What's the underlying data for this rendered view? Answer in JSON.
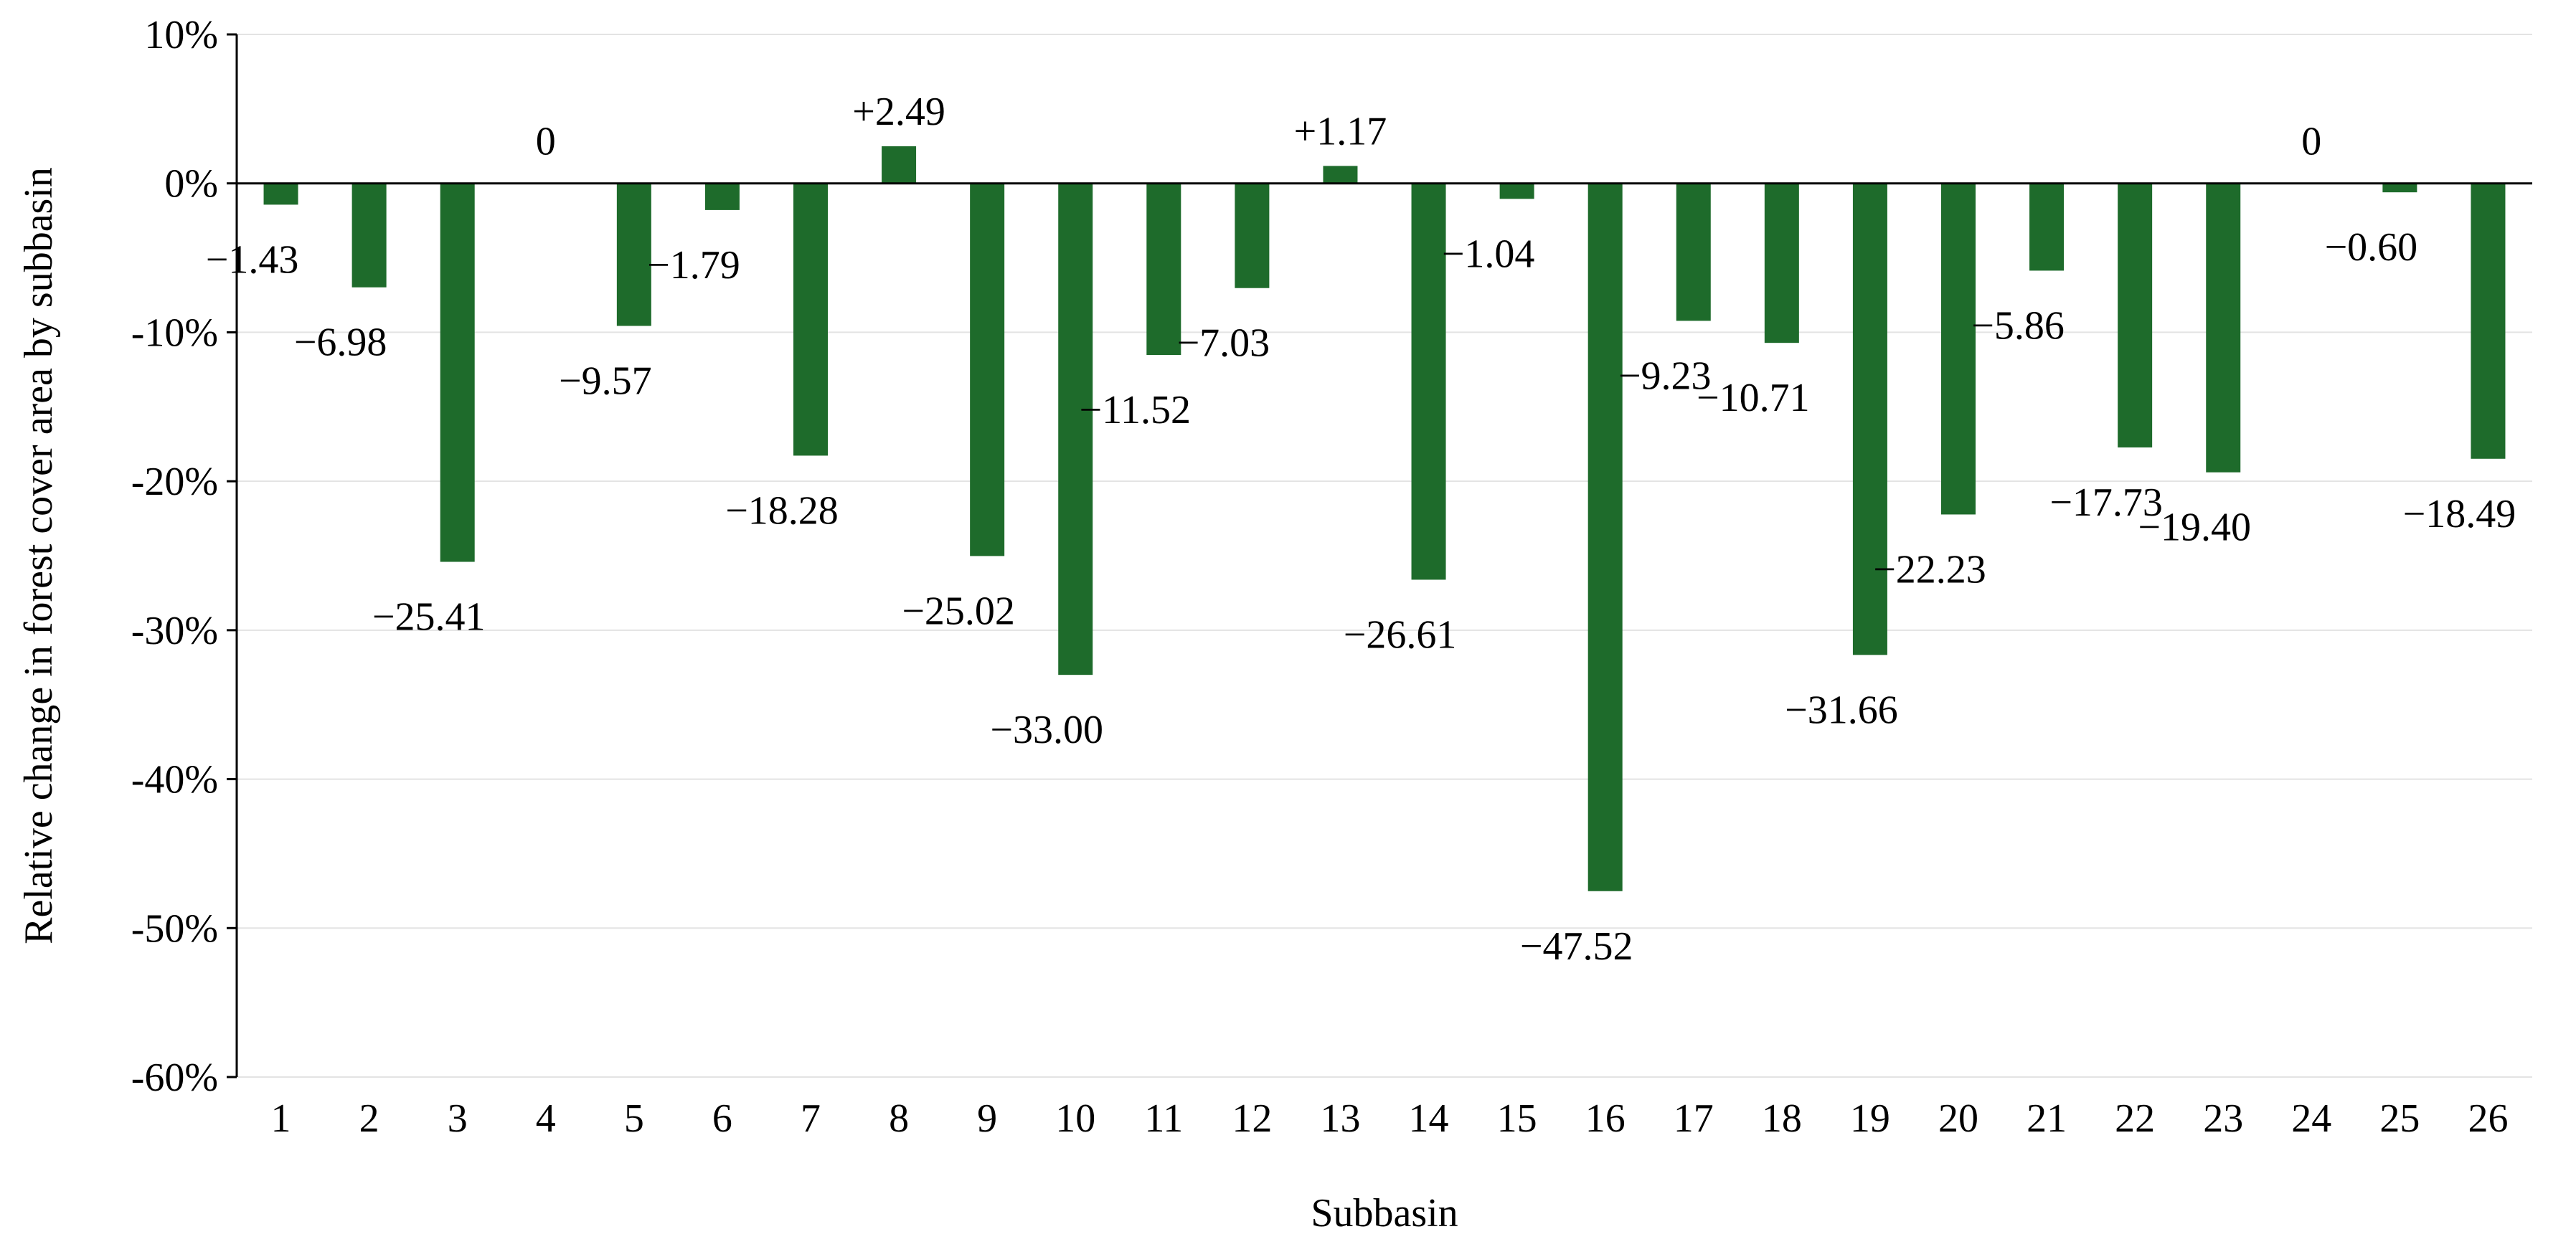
{
  "chart_data": {
    "type": "bar",
    "title": "",
    "xlabel": "Subbasin",
    "ylabel": "Relative change in forest cover area by subbasin",
    "ylim": [
      -60,
      10
    ],
    "y_tick_values": [
      10,
      0,
      -10,
      -20,
      -30,
      -40,
      -50,
      -60
    ],
    "y_tick_labels": [
      "10%",
      "0%",
      "-10%",
      "-20%",
      "-30%",
      "-40%",
      "-50%",
      "-60%"
    ],
    "grid": true,
    "bar_color": "#1e6b2b",
    "categories": [
      "1",
      "2",
      "3",
      "4",
      "5",
      "6",
      "7",
      "8",
      "9",
      "10",
      "11",
      "12",
      "13",
      "14",
      "15",
      "16",
      "17",
      "18",
      "19",
      "20",
      "21",
      "22",
      "23",
      "24",
      "25",
      "26"
    ],
    "values": [
      -1.43,
      -6.98,
      -25.41,
      0,
      -9.57,
      -1.79,
      -18.28,
      2.49,
      -25.02,
      -33.0,
      -11.52,
      -7.03,
      1.17,
      -26.61,
      -1.04,
      -47.52,
      -9.23,
      -10.71,
      -31.66,
      -22.23,
      -5.86,
      -17.73,
      -19.4,
      0,
      -0.6,
      -18.49
    ],
    "data_labels": [
      "−1.43",
      "−6.98",
      "−25.41",
      "0",
      "−9.57",
      "−1.79",
      "−18.28",
      "+2.49",
      "−25.02",
      "−33.00",
      "−11.52",
      "−7.03",
      "+1.17",
      "−26.61",
      "−1.04",
      "−47.52",
      "−9.23",
      "−10.71",
      "−31.66",
      "−22.23",
      "−5.86",
      "−17.73",
      "−19.40",
      "0",
      "−0.60",
      "−18.49"
    ]
  }
}
